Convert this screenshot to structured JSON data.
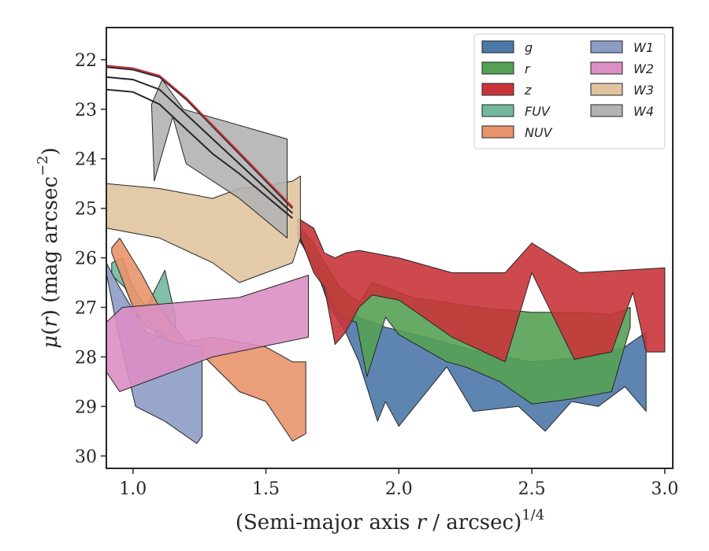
{
  "chart_data": {
    "type": "area",
    "xlabel": "(Semi-major axis r / arcsec)",
    "xlabel_main": "(Semi-major axis ",
    "xlabel_var": "r",
    "xlabel_rest": " / arcsec)",
    "xlabel_exp": "1/4",
    "ylabel_mu": "μ",
    "ylabel_r": "r",
    "ylabel_rest": ") (mag arcsec",
    "ylabel_exp": "−2",
    "ylabel_close": ")",
    "xlim": [
      0.9,
      3.03
    ],
    "ylim": [
      30.25,
      21.35
    ],
    "y_inverted": true,
    "x_ticks": [
      "1.0",
      "1.5",
      "2.0",
      "2.5",
      "3.0"
    ],
    "x_tick_values": [
      1.0,
      1.5,
      2.0,
      2.5,
      3.0
    ],
    "y_ticks": [
      "22",
      "23",
      "24",
      "25",
      "26",
      "27",
      "28",
      "29",
      "30"
    ],
    "y_tick_values": [
      22,
      23,
      24,
      25,
      26,
      27,
      28,
      29,
      30
    ],
    "grid": false,
    "legend_position": "top-right",
    "series": [
      {
        "name": "g",
        "color": "#4c78a8",
        "upper": [
          [
            1.62,
            25.4
          ],
          [
            1.68,
            25.9
          ],
          [
            1.72,
            26.3
          ],
          [
            1.78,
            26.8
          ],
          [
            1.85,
            27.2
          ],
          [
            1.95,
            27.4
          ],
          [
            2.1,
            27.6
          ],
          [
            2.3,
            27.9
          ],
          [
            2.5,
            28.1
          ],
          [
            2.7,
            28.0
          ],
          [
            2.85,
            27.8
          ],
          [
            2.93,
            27.5
          ]
        ],
        "lower": [
          [
            2.93,
            29.1
          ],
          [
            2.85,
            28.6
          ],
          [
            2.75,
            29.0
          ],
          [
            2.65,
            28.9
          ],
          [
            2.55,
            29.5
          ],
          [
            2.45,
            29.0
          ],
          [
            2.28,
            29.1
          ],
          [
            2.18,
            28.2
          ],
          [
            2.0,
            29.4
          ],
          [
            1.95,
            28.9
          ],
          [
            1.92,
            29.3
          ],
          [
            1.85,
            28.1
          ],
          [
            1.8,
            27.5
          ],
          [
            1.74,
            27.0
          ],
          [
            1.68,
            26.1
          ],
          [
            1.62,
            25.6
          ]
        ]
      },
      {
        "name": "r",
        "color": "#55a155",
        "upper": [
          [
            1.62,
            25.35
          ],
          [
            1.68,
            25.7
          ],
          [
            1.72,
            26.1
          ],
          [
            1.78,
            26.6
          ],
          [
            1.85,
            26.9
          ],
          [
            1.9,
            26.5
          ],
          [
            2.05,
            26.8
          ],
          [
            2.3,
            27.0
          ],
          [
            2.5,
            27.1
          ],
          [
            2.7,
            27.1
          ],
          [
            2.8,
            27.15
          ],
          [
            2.87,
            27.0
          ]
        ],
        "lower": [
          [
            2.87,
            27.4
          ],
          [
            2.8,
            28.7
          ],
          [
            2.65,
            28.85
          ],
          [
            2.5,
            28.95
          ],
          [
            2.38,
            28.5
          ],
          [
            2.25,
            28.2
          ],
          [
            2.18,
            28.1
          ],
          [
            2.0,
            27.55
          ],
          [
            1.95,
            27.2
          ],
          [
            1.88,
            28.4
          ],
          [
            1.84,
            27.3
          ],
          [
            1.78,
            27.2
          ],
          [
            1.74,
            26.8
          ],
          [
            1.68,
            26.2
          ],
          [
            1.62,
            25.55
          ]
        ]
      },
      {
        "name": "z",
        "color": "#c9353a",
        "upper": [
          [
            1.62,
            25.2
          ],
          [
            1.68,
            25.4
          ],
          [
            1.72,
            25.9
          ],
          [
            1.76,
            26.0
          ],
          [
            1.8,
            25.9
          ],
          [
            1.85,
            25.85
          ],
          [
            2.0,
            26.0
          ],
          [
            2.2,
            26.3
          ],
          [
            2.4,
            26.3
          ],
          [
            2.5,
            25.7
          ],
          [
            2.68,
            26.3
          ],
          [
            2.85,
            26.25
          ],
          [
            3.0,
            26.2
          ]
        ],
        "lower": [
          [
            3.0,
            27.9
          ],
          [
            2.93,
            27.9
          ],
          [
            2.88,
            26.7
          ],
          [
            2.8,
            27.9
          ],
          [
            2.66,
            28.05
          ],
          [
            2.5,
            26.3
          ],
          [
            2.4,
            28.1
          ],
          [
            2.2,
            27.6
          ],
          [
            2.0,
            26.85
          ],
          [
            1.9,
            26.75
          ],
          [
            1.85,
            27.0
          ],
          [
            1.8,
            27.5
          ],
          [
            1.76,
            27.75
          ],
          [
            1.72,
            26.6
          ],
          [
            1.68,
            26.3
          ],
          [
            1.62,
            25.45
          ]
        ]
      },
      {
        "name": "FUV",
        "color": "#73b89e",
        "upper": [
          [
            0.92,
            26.1
          ],
          [
            0.96,
            26.0
          ],
          [
            1.0,
            26.6
          ],
          [
            1.05,
            27.0
          ],
          [
            1.12,
            26.25
          ],
          [
            1.16,
            27.2
          ]
        ],
        "lower": [
          [
            1.16,
            27.5
          ],
          [
            1.1,
            27.6
          ],
          [
            1.06,
            27.3
          ],
          [
            1.02,
            27.2
          ],
          [
            0.97,
            26.6
          ],
          [
            0.92,
            26.35
          ]
        ]
      },
      {
        "name": "NUV",
        "color": "#e8936c",
        "upper": [
          [
            0.92,
            25.8
          ],
          [
            0.95,
            25.6
          ],
          [
            1.03,
            26.3
          ],
          [
            1.1,
            27.0
          ],
          [
            1.2,
            27.7
          ],
          [
            1.3,
            27.6
          ],
          [
            1.5,
            27.8
          ],
          [
            1.6,
            28.1
          ],
          [
            1.65,
            28.1
          ]
        ],
        "lower": [
          [
            1.65,
            29.55
          ],
          [
            1.6,
            29.7
          ],
          [
            1.5,
            28.9
          ],
          [
            1.4,
            28.7
          ],
          [
            1.25,
            27.9
          ],
          [
            1.17,
            27.85
          ],
          [
            1.1,
            27.5
          ],
          [
            1.05,
            27.4
          ],
          [
            1.0,
            27.0
          ],
          [
            0.95,
            26.3
          ],
          [
            0.92,
            25.9
          ]
        ]
      },
      {
        "name": "W1",
        "color": "#8c9cc4",
        "upper": [
          [
            0.9,
            26.1
          ],
          [
            0.95,
            26.6
          ],
          [
            1.05,
            27.5
          ],
          [
            1.15,
            27.7
          ],
          [
            1.26,
            27.8
          ]
        ],
        "lower": [
          [
            1.26,
            29.6
          ],
          [
            1.24,
            29.75
          ],
          [
            1.12,
            29.3
          ],
          [
            1.01,
            29.0
          ],
          [
            0.94,
            27.4
          ],
          [
            0.9,
            26.3
          ]
        ]
      },
      {
        "name": "W2",
        "color": "#dc8fc4",
        "upper": [
          [
            0.9,
            27.3
          ],
          [
            0.96,
            27.0
          ],
          [
            1.4,
            26.8
          ],
          [
            1.66,
            26.35
          ]
        ],
        "lower": [
          [
            1.66,
            27.6
          ],
          [
            1.3,
            28.0
          ],
          [
            0.95,
            28.7
          ],
          [
            0.9,
            28.3
          ]
        ]
      },
      {
        "name": "W3",
        "color": "#e0c4a0",
        "upper": [
          [
            0.9,
            24.5
          ],
          [
            1.1,
            24.6
          ],
          [
            1.3,
            24.8
          ],
          [
            1.4,
            24.6
          ],
          [
            1.5,
            24.55
          ],
          [
            1.6,
            24.45
          ],
          [
            1.63,
            24.35
          ]
        ],
        "lower": [
          [
            1.63,
            25.6
          ],
          [
            1.6,
            26.1
          ],
          [
            1.4,
            26.5
          ],
          [
            1.3,
            26.1
          ],
          [
            1.1,
            25.6
          ],
          [
            0.9,
            25.4
          ]
        ]
      },
      {
        "name": "W4",
        "color": "#b3b3b3",
        "upper": [
          [
            1.07,
            22.9
          ],
          [
            1.11,
            22.4
          ],
          [
            1.19,
            23.0
          ],
          [
            1.58,
            23.6
          ]
        ],
        "lower": [
          [
            1.58,
            25.6
          ],
          [
            1.4,
            24.8
          ],
          [
            1.2,
            24.1
          ],
          [
            1.15,
            23.15
          ],
          [
            1.08,
            24.45
          ]
        ]
      }
    ],
    "profile_lines": [
      {
        "color": "#262626",
        "points": [
          [
            0.9,
            22.6
          ],
          [
            1.0,
            22.65
          ],
          [
            1.1,
            22.9
          ],
          [
            1.2,
            23.4
          ],
          [
            1.3,
            23.9
          ],
          [
            1.4,
            24.3
          ],
          [
            1.5,
            24.75
          ],
          [
            1.6,
            25.2
          ]
        ]
      },
      {
        "color": "#262626",
        "points": [
          [
            0.9,
            22.35
          ],
          [
            1.0,
            22.4
          ],
          [
            1.1,
            22.6
          ],
          [
            1.2,
            23.1
          ],
          [
            1.3,
            23.6
          ],
          [
            1.4,
            24.1
          ],
          [
            1.5,
            24.6
          ],
          [
            1.6,
            25.1
          ]
        ]
      },
      {
        "color": "#262626",
        "points": [
          [
            0.9,
            22.15
          ],
          [
            1.0,
            22.2
          ],
          [
            1.1,
            22.35
          ],
          [
            1.2,
            22.8
          ],
          [
            1.3,
            23.35
          ],
          [
            1.4,
            23.9
          ],
          [
            1.5,
            24.45
          ],
          [
            1.6,
            25.0
          ]
        ]
      },
      {
        "color": "#c9353a",
        "points": [
          [
            0.9,
            22.12
          ],
          [
            1.0,
            22.17
          ],
          [
            1.1,
            22.32
          ],
          [
            1.2,
            22.77
          ],
          [
            1.3,
            23.32
          ],
          [
            1.4,
            23.87
          ],
          [
            1.5,
            24.42
          ],
          [
            1.6,
            24.97
          ]
        ]
      }
    ]
  }
}
